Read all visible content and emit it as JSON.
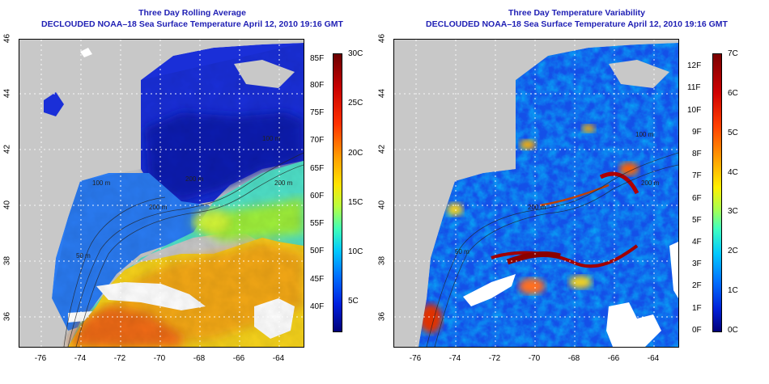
{
  "left_panel": {
    "title": "Three Day Rolling Average",
    "subtitle": "DECLOUDED NOAA–18 Sea Surface Temperature April 12, 2010 19:16 GMT",
    "colorbar_f": [
      "85F",
      "80F",
      "75F",
      "70F",
      "65F",
      "60F",
      "55F",
      "50F",
      "45F",
      "40F"
    ],
    "colorbar_c": [
      "30C",
      "25C",
      "20C",
      "15C",
      "10C",
      "5C"
    ],
    "contours": [
      "200 m",
      "200 m",
      "100 m",
      "200 m",
      "100 m",
      "50 m"
    ]
  },
  "right_panel": {
    "title": "Three Day Temperature Variability",
    "subtitle": "DECLOUDED NOAA–18 Sea Surface Temperature April 12, 2010 19:16 GMT",
    "colorbar_f": [
      "12F",
      "11F",
      "10F",
      "9F",
      "8F",
      "7F",
      "6F",
      "5F",
      "4F",
      "3F",
      "2F",
      "1F",
      "0F"
    ],
    "colorbar_c": [
      "7C",
      "6C",
      "5C",
      "4C",
      "3C",
      "2C",
      "1C",
      "0C"
    ],
    "contours": [
      "200 m",
      "100 m",
      "200 m",
      "50 m"
    ]
  },
  "axes": {
    "lat_ticks": [
      "46",
      "44",
      "42",
      "40",
      "38",
      "36"
    ],
    "lon_ticks": [
      "-76",
      "-74",
      "-72",
      "-70",
      "-68",
      "-66",
      "-64"
    ]
  },
  "colors": {
    "land": "#c8c8c8",
    "title": "#1f1fb4"
  }
}
